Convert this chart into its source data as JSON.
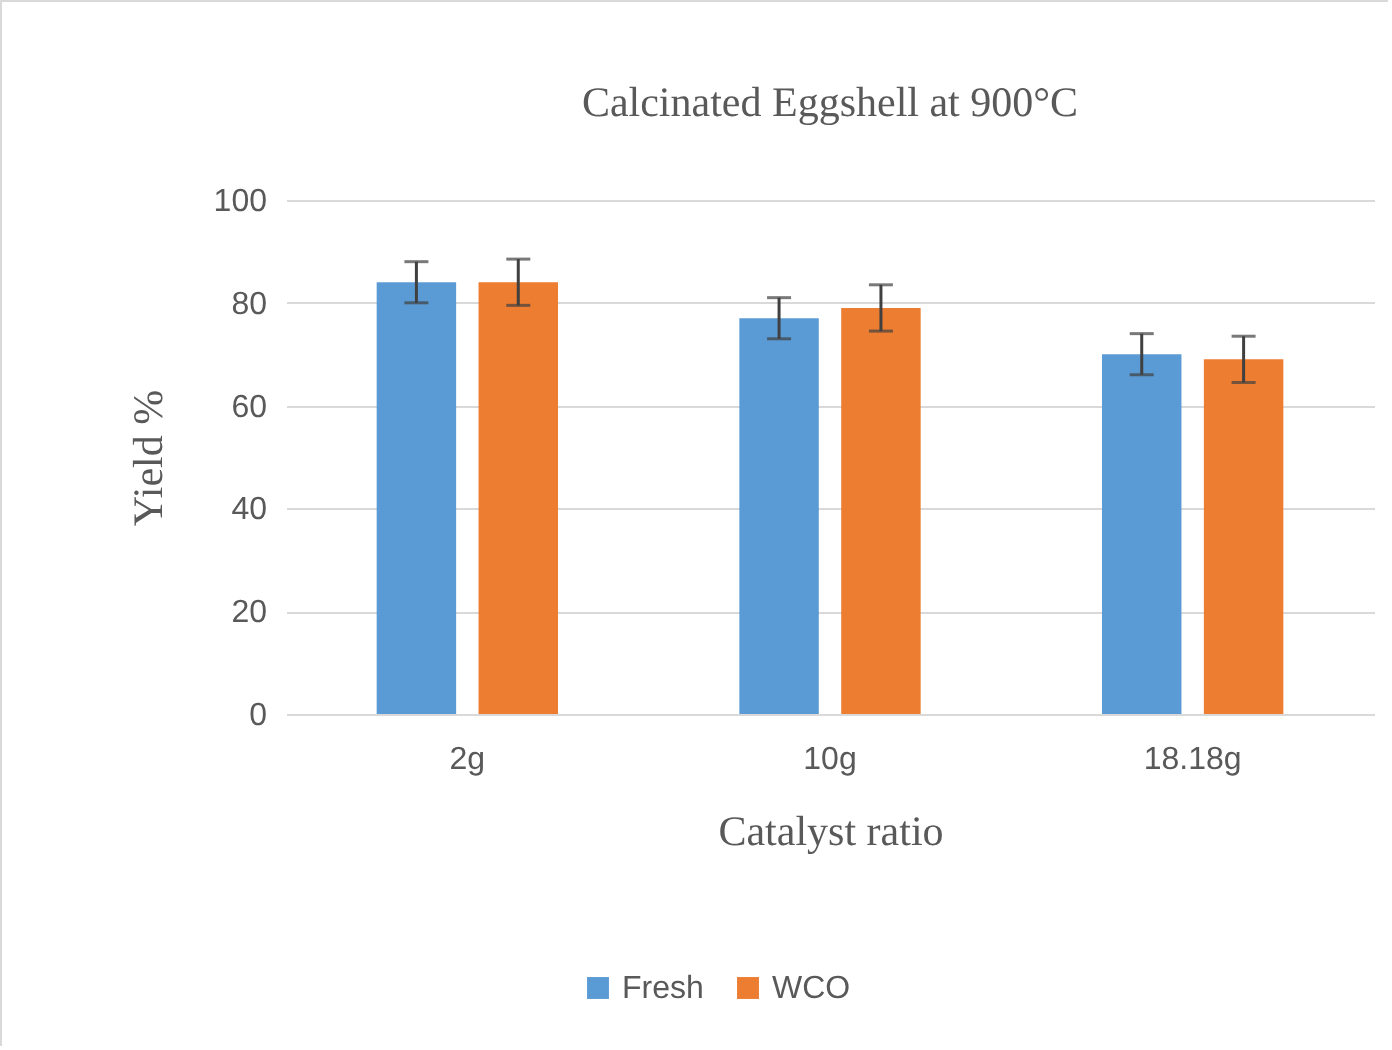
{
  "chart_data": {
    "type": "bar",
    "title": "Calcinated Eggshell at 900°C",
    "xlabel": "Catalyst ratio",
    "ylabel": "Yield %",
    "categories": [
      "2g",
      "10g",
      "18.18g"
    ],
    "series": [
      {
        "name": "Fresh",
        "color": "#5b9bd5",
        "values": [
          84,
          77,
          70
        ],
        "errors": [
          4,
          4,
          4
        ]
      },
      {
        "name": "WCO",
        "color": "#ed7d31",
        "values": [
          84,
          79,
          69
        ],
        "errors": [
          4.5,
          4.5,
          4.5
        ]
      }
    ],
    "ylim": [
      0,
      100
    ],
    "yticks": [
      0,
      20,
      40,
      60,
      80,
      100
    ],
    "grid": "y",
    "legend": "bottom"
  }
}
